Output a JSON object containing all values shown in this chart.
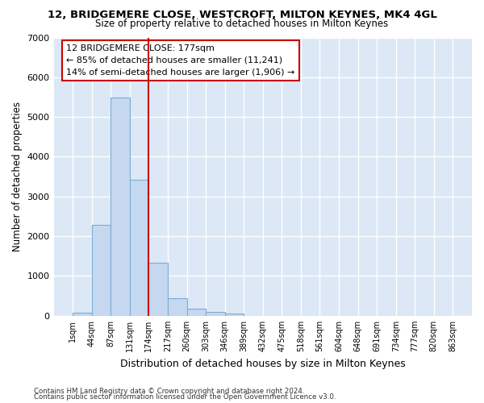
{
  "title": "12, BRIDGEMERE CLOSE, WESTCROFT, MILTON KEYNES, MK4 4GL",
  "subtitle": "Size of property relative to detached houses in Milton Keynes",
  "xlabel": "Distribution of detached houses by size in Milton Keynes",
  "ylabel": "Number of detached properties",
  "footer_line1": "Contains HM Land Registry data © Crown copyright and database right 2024.",
  "footer_line2": "Contains public sector information licensed under the Open Government Licence v3.0.",
  "bin_labels": [
    "1sqm",
    "44sqm",
    "87sqm",
    "131sqm",
    "174sqm",
    "217sqm",
    "260sqm",
    "303sqm",
    "346sqm",
    "389sqm",
    "432sqm",
    "475sqm",
    "518sqm",
    "561sqm",
    "604sqm",
    "648sqm",
    "691sqm",
    "734sqm",
    "777sqm",
    "820sqm",
    "863sqm"
  ],
  "bar_values": [
    80,
    2280,
    5480,
    3420,
    1340,
    450,
    175,
    100,
    50,
    0,
    0,
    0,
    0,
    0,
    0,
    0,
    0,
    0,
    0,
    0
  ],
  "bar_color": "#c5d8f0",
  "bar_edge_color": "#7aaed4",
  "background_color": "#dce8f5",
  "grid_color": "#ffffff",
  "vline_x": 4,
  "vline_color": "#cc0000",
  "annotation_text": "12 BRIDGEMERE CLOSE: 177sqm\n← 85% of detached houses are smaller (11,241)\n14% of semi-detached houses are larger (1,906) →",
  "annotation_box_color": "#cc0000",
  "ylim": [
    0,
    7000
  ],
  "yticks": [
    0,
    1000,
    2000,
    3000,
    4000,
    5000,
    6000,
    7000
  ]
}
